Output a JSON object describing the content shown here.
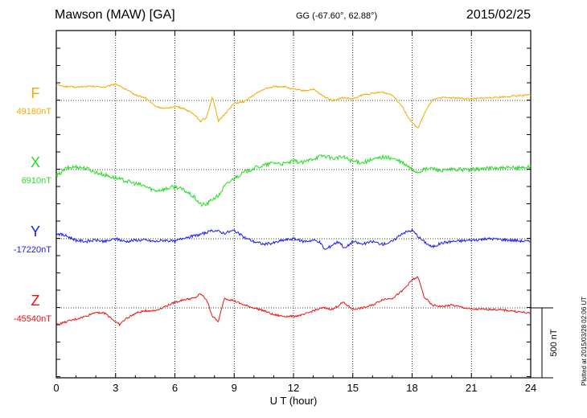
{
  "header": {
    "title": "Mawson (MAW)  [GA]",
    "coords": "GG (-67.60°,  62.88°)",
    "date": "2015/02/25"
  },
  "footer": "Plotted at 2015/03/28 02:06 UT",
  "chart_data": {
    "type": "line",
    "xlabel": "U T (hour)",
    "xlim": [
      0,
      24
    ],
    "xticks": [
      0,
      3,
      6,
      9,
      12,
      15,
      18,
      21,
      24
    ],
    "scale_label": "500 nT",
    "scale_nT": 500,
    "series": [
      {
        "name": "F",
        "baseline_label": "49180nT",
        "color": "#f5a800",
        "x": [
          0,
          0.5,
          1,
          1.5,
          2,
          2.5,
          3,
          3.5,
          4,
          4.5,
          5,
          5.5,
          6,
          6.5,
          7,
          7.3,
          7.6,
          7.9,
          8.2,
          8.5,
          9,
          9.5,
          10,
          10.5,
          11,
          11.5,
          12,
          12.5,
          13,
          13.5,
          14,
          14.5,
          15,
          15.5,
          16,
          16.5,
          17,
          17.5,
          17.8,
          18,
          18.3,
          18.6,
          19,
          19.5,
          20,
          21,
          22,
          23,
          24
        ],
        "y": [
          110,
          100,
          95,
          100,
          100,
          95,
          120,
          80,
          40,
          20,
          -40,
          -60,
          -40,
          -60,
          -100,
          -150,
          -120,
          30,
          -150,
          -100,
          -20,
          -10,
          40,
          80,
          100,
          100,
          80,
          70,
          80,
          30,
          0,
          20,
          10,
          40,
          50,
          60,
          40,
          -40,
          -120,
          -160,
          -200,
          -100,
          0,
          20,
          20,
          10,
          20,
          30,
          40
        ]
      },
      {
        "name": "X",
        "baseline_label": "6910nT",
        "color": "#22dd22",
        "x": [
          0,
          0.5,
          1,
          1.5,
          2,
          2.5,
          3,
          3.5,
          4,
          4.5,
          5,
          5.5,
          6,
          6.5,
          7,
          7.3,
          7.6,
          7.9,
          8.2,
          8.5,
          9,
          9.5,
          10,
          10.5,
          11,
          11.5,
          12,
          12.5,
          13,
          13.5,
          14,
          14.5,
          15,
          15.5,
          16,
          16.5,
          17,
          17.5,
          17.8,
          18,
          18.3,
          18.6,
          19,
          19.5,
          20,
          21,
          22,
          23,
          24
        ],
        "y": [
          -50,
          10,
          20,
          10,
          -20,
          -40,
          -60,
          -80,
          -100,
          -120,
          -150,
          -140,
          -120,
          -150,
          -200,
          -250,
          -250,
          -210,
          -190,
          -120,
          -60,
          -20,
          10,
          30,
          50,
          40,
          60,
          50,
          80,
          100,
          80,
          90,
          60,
          50,
          70,
          90,
          80,
          50,
          20,
          0,
          -20,
          0,
          10,
          -10,
          0,
          0,
          10,
          10,
          20
        ]
      },
      {
        "name": "Y",
        "baseline_label": "-17220nT",
        "color": "#1a1aee",
        "x": [
          0,
          0.5,
          1,
          1.5,
          2,
          2.5,
          3,
          3.5,
          4,
          4.5,
          5,
          5.5,
          6,
          6.5,
          7,
          7.5,
          8,
          8.5,
          9,
          9.5,
          10,
          10.5,
          11,
          11.5,
          12,
          12.5,
          13,
          13.3,
          13.6,
          14,
          14.3,
          14.6,
          15,
          15.5,
          16,
          16.5,
          17,
          17.5,
          18,
          18.5,
          19,
          19.5,
          20,
          21,
          22,
          23,
          24
        ],
        "y": [
          40,
          20,
          -10,
          -20,
          -10,
          -20,
          0,
          -20,
          -10,
          -10,
          -20,
          -10,
          -20,
          10,
          20,
          40,
          60,
          40,
          60,
          10,
          -20,
          -40,
          -30,
          -10,
          0,
          -20,
          -10,
          -20,
          -80,
          -40,
          -20,
          -70,
          -20,
          -40,
          -20,
          -40,
          -20,
          40,
          60,
          -10,
          -60,
          -30,
          -20,
          -10,
          0,
          -10,
          -20
        ]
      },
      {
        "name": "Z",
        "baseline_label": "-45540nT",
        "color": "#ee1111",
        "x": [
          0,
          0.5,
          1,
          1.5,
          2,
          2.5,
          3,
          3.2,
          3.5,
          4,
          4.5,
          5,
          5.5,
          6,
          6.5,
          7,
          7.3,
          7.6,
          7.9,
          8.2,
          8.5,
          9,
          9.5,
          10,
          10.5,
          11,
          11.5,
          12,
          12.5,
          13,
          13.5,
          14,
          14.5,
          15,
          15.5,
          16,
          16.5,
          17,
          17.5,
          18,
          18.3,
          18.6,
          19,
          19.5,
          20,
          21,
          22,
          23,
          24
        ],
        "y": [
          -120,
          -100,
          -80,
          -60,
          -30,
          -40,
          -100,
          -120,
          -80,
          -40,
          -20,
          -20,
          10,
          40,
          60,
          70,
          100,
          60,
          -60,
          -100,
          70,
          50,
          20,
          0,
          -20,
          -50,
          -60,
          -60,
          -50,
          -20,
          0,
          -10,
          40,
          -10,
          0,
          20,
          60,
          70,
          120,
          200,
          220,
          80,
          20,
          10,
          20,
          -10,
          -10,
          -20,
          -40
        ]
      }
    ]
  }
}
